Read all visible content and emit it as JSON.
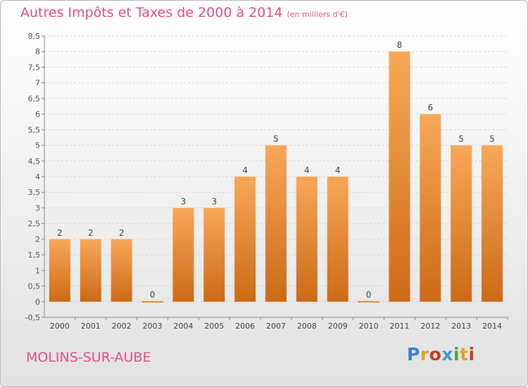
{
  "title": "Autres Impôts et Taxes de 2000 à 2014",
  "subtitle": "(en milliers d'€)",
  "commune": "MOLINS-SUR-AUBE",
  "logo": {
    "text": "Proxiti",
    "colors": [
      "#3d7fd6",
      "#e8a020",
      "#cc3a2c",
      "#3d9ad0",
      "#4aa83a",
      "#e8a020",
      "#cc3a2c"
    ]
  },
  "colors": {
    "title": "#e0508a",
    "bar_top": "#f8a858",
    "bar_bottom": "#cc6a16",
    "grid": "#d4d4d4",
    "axis": "#888888"
  },
  "chart_data": {
    "type": "bar",
    "categories": [
      "2000",
      "2001",
      "2002",
      "2003",
      "2004",
      "2005",
      "2006",
      "2007",
      "2008",
      "2009",
      "2010",
      "2011",
      "2012",
      "2013",
      "2014"
    ],
    "values": [
      2,
      2,
      2,
      0,
      3,
      3,
      4,
      5,
      4,
      4,
      0,
      8,
      6,
      5,
      5
    ],
    "value_labels": [
      "2",
      "2",
      "2",
      "0",
      "3",
      "3",
      "4",
      "5",
      "4",
      "4",
      "0",
      "8",
      "6",
      "5",
      "5"
    ],
    "yticks": [
      "-0,5",
      "0",
      "0,5",
      "1",
      "1,5",
      "2",
      "2,5",
      "3",
      "3,5",
      "4",
      "4,5",
      "5",
      "5,5",
      "6",
      "6,5",
      "7",
      "7,5",
      "8",
      "8,5"
    ],
    "ylim": [
      -0.5,
      8.5
    ],
    "xlabel": "",
    "ylabel": "",
    "grid": true
  }
}
